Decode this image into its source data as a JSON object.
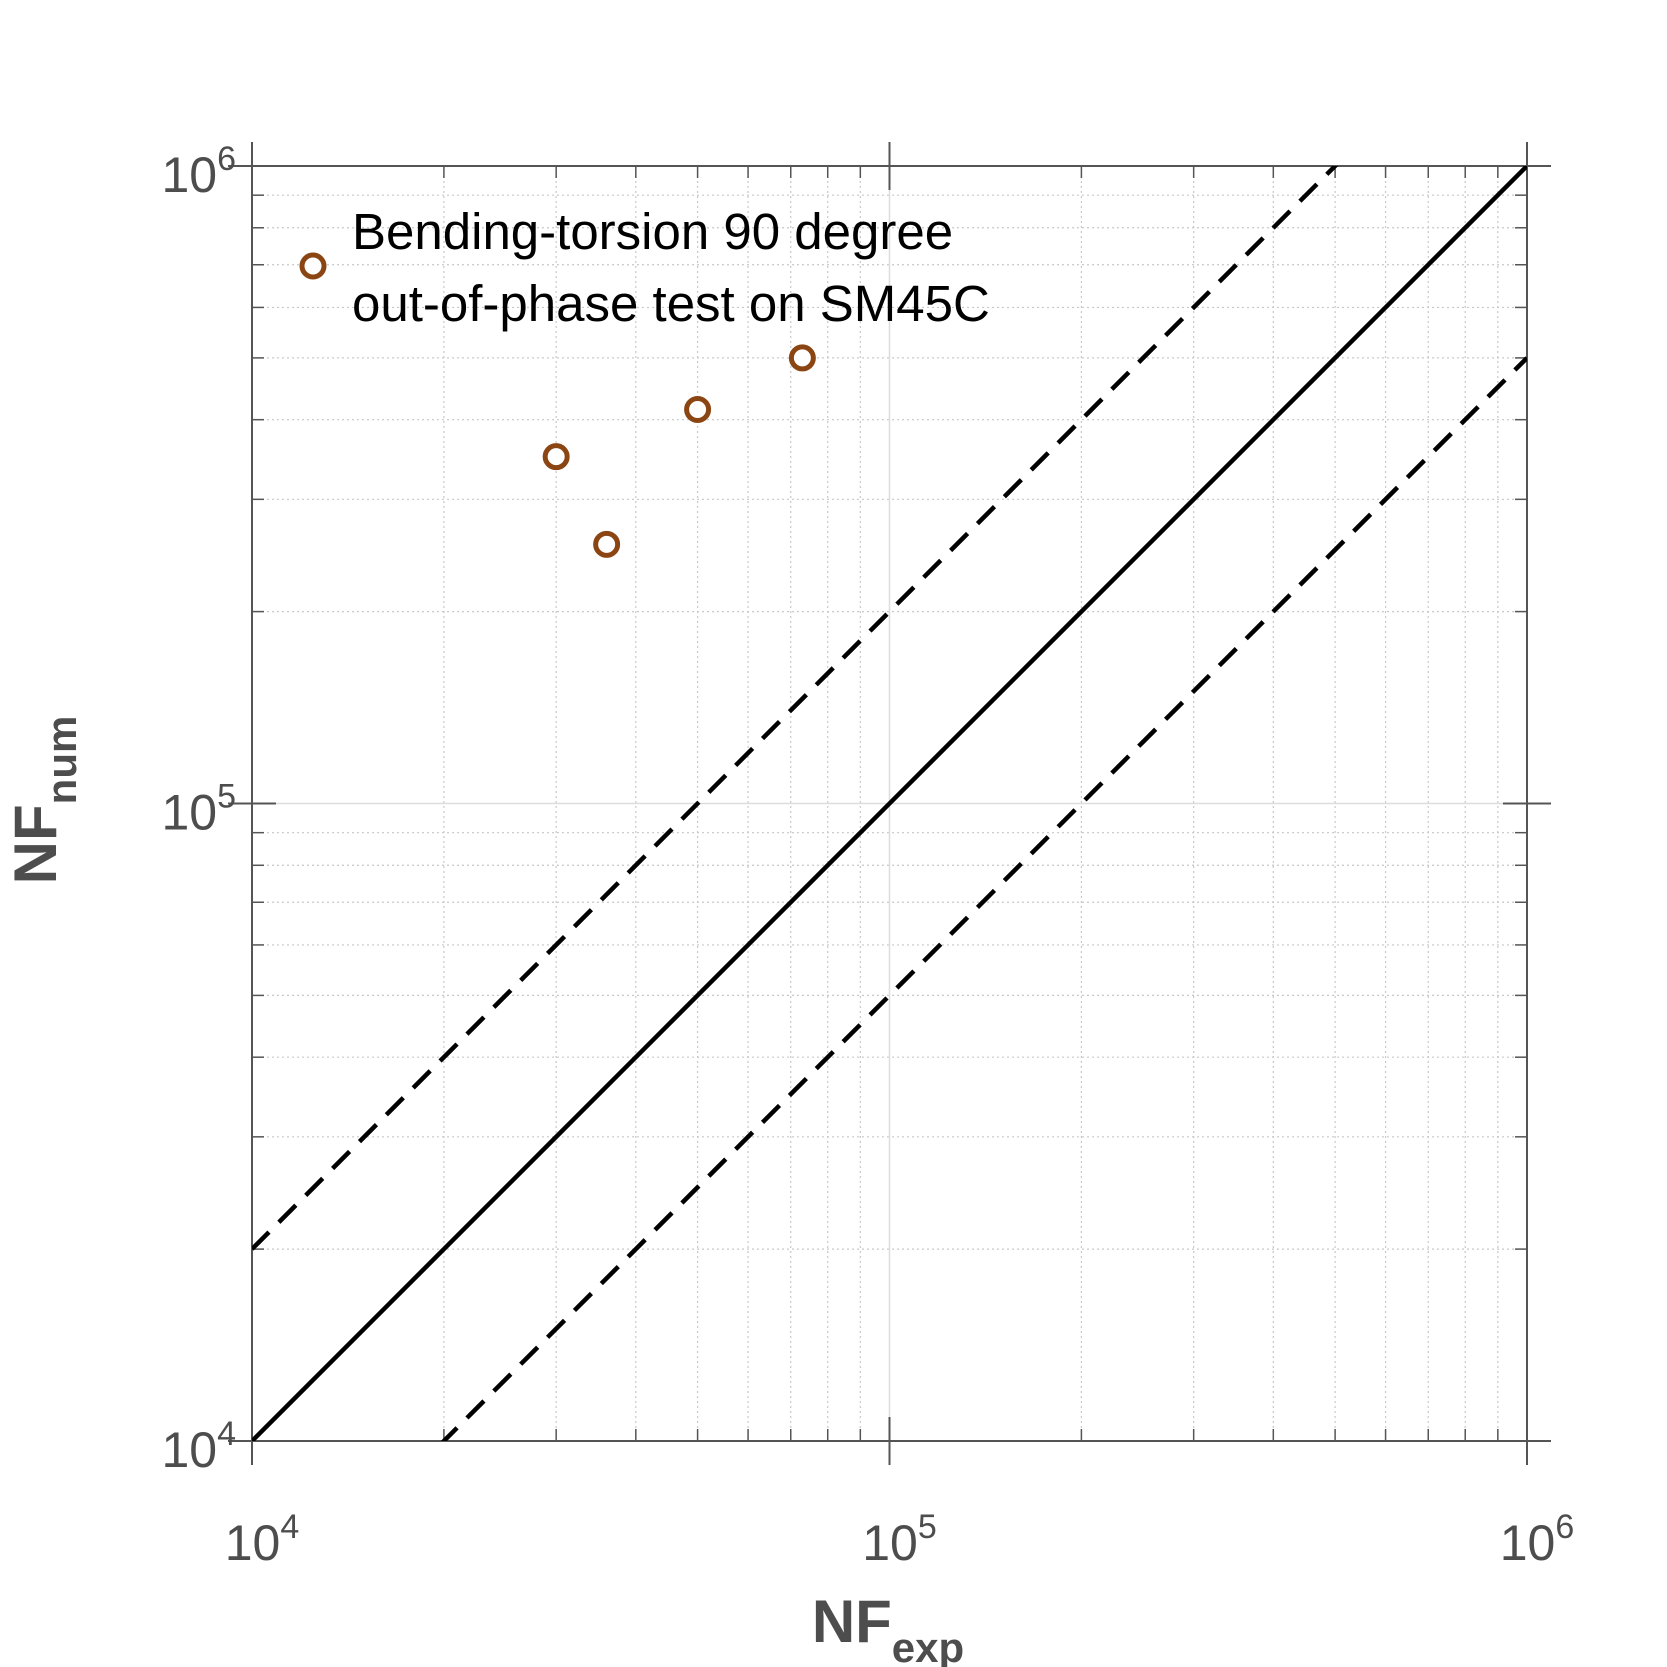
{
  "chart_data": {
    "type": "scatter",
    "xscale": "log",
    "yscale": "log",
    "xlim": [
      10000,
      1000000
    ],
    "ylim": [
      10000,
      1000000
    ],
    "grid": true,
    "minor_grid": true,
    "legend_location": "top-left",
    "xlabel": {
      "base": "NF",
      "sub": "exp"
    },
    "ylabel": {
      "base": "NF",
      "sub": "num"
    },
    "x_ticks": [
      {
        "value": 10000,
        "base": "10",
        "exp": "4"
      },
      {
        "value": 100000,
        "base": "10",
        "exp": "5"
      },
      {
        "value": 1000000,
        "base": "10",
        "exp": "6"
      }
    ],
    "y_ticks": [
      {
        "value": 10000,
        "base": "10",
        "exp": "4"
      },
      {
        "value": 100000,
        "base": "10",
        "exp": "5"
      },
      {
        "value": 1000000,
        "base": "10",
        "exp": "6"
      }
    ],
    "series": [
      {
        "name": "Bending-torsion 90 degree out-of-phase test on SM45C",
        "legend_lines": [
          "Bending-torsion 90 degree",
          "out-of-phase test on SM45C"
        ],
        "marker": "circle-open",
        "color": "#8B4513",
        "points": [
          {
            "x": 30000,
            "y": 350000
          },
          {
            "x": 36000,
            "y": 255000
          },
          {
            "x": 50000,
            "y": 415000
          },
          {
            "x": 73000,
            "y": 500000
          }
        ]
      }
    ],
    "reference_lines": [
      {
        "kind": "equality",
        "factor": 1,
        "style": "solid",
        "color": "#000000"
      },
      {
        "kind": "band-upper",
        "factor": 2,
        "style": "dashed",
        "color": "#000000"
      },
      {
        "kind": "band-lower",
        "factor": 0.5,
        "style": "dashed",
        "color": "#000000"
      }
    ]
  }
}
